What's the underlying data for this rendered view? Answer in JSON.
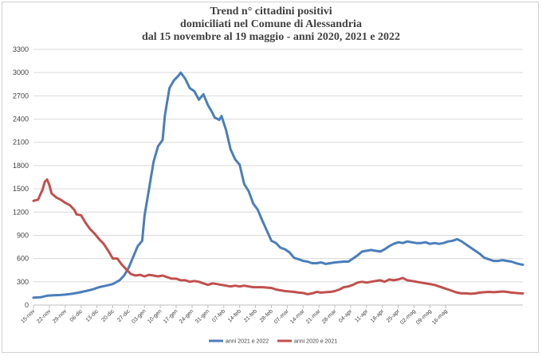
{
  "chart_data": {
    "type": "line",
    "title_lines": [
      "Trend n° cittadini positivi",
      "domiciliati nel Comune di Alessandria",
      "dal 15 novembre al 19 maggio - anni 2020, 2021 e 2022"
    ],
    "ylim": [
      0,
      3300
    ],
    "yticks": [
      0,
      300,
      600,
      900,
      1200,
      1500,
      1800,
      2100,
      2400,
      2700,
      3000,
      3300
    ],
    "grid": "horizontal",
    "legend_position": "bottom",
    "categories": [
      "15-nov",
      "22-nov",
      "29-nov",
      "06-dic",
      "13-dic",
      "20-dic",
      "27-dic",
      "03-gen",
      "10-gen",
      "17-gen",
      "24-gen",
      "31-gen",
      "07-feb",
      "14-feb",
      "21-feb",
      "28-feb",
      "07-mar",
      "14-mar",
      "21-mar",
      "28-mar",
      "04-apr",
      "11-apr",
      "18-apr",
      "25-apr",
      "02-mag",
      "09-mag",
      "16-mag"
    ],
    "series": [
      {
        "name": "anni 2021 e 2022",
        "color": "#4a7ebb",
        "points": [
          [
            0,
            95
          ],
          [
            3,
            100
          ],
          [
            6,
            120
          ],
          [
            9,
            125
          ],
          [
            12,
            130
          ],
          [
            14,
            135
          ],
          [
            17,
            145
          ],
          [
            20,
            160
          ],
          [
            23,
            180
          ],
          [
            26,
            200
          ],
          [
            29,
            230
          ],
          [
            32,
            250
          ],
          [
            35,
            270
          ],
          [
            38,
            320
          ],
          [
            40,
            380
          ],
          [
            42,
            480
          ],
          [
            44,
            620
          ],
          [
            46,
            760
          ],
          [
            48,
            830
          ],
          [
            49,
            1150
          ],
          [
            51,
            1500
          ],
          [
            53,
            1850
          ],
          [
            55,
            2050
          ],
          [
            57,
            2130
          ],
          [
            58,
            2450
          ],
          [
            60,
            2800
          ],
          [
            62,
            2900
          ],
          [
            64,
            2960
          ],
          [
            65,
            3000
          ],
          [
            67,
            2920
          ],
          [
            69,
            2800
          ],
          [
            71,
            2760
          ],
          [
            73,
            2650
          ],
          [
            75,
            2720
          ],
          [
            77,
            2580
          ],
          [
            79,
            2480
          ],
          [
            80,
            2420
          ],
          [
            82,
            2390
          ],
          [
            83,
            2440
          ],
          [
            85,
            2260
          ],
          [
            87,
            2010
          ],
          [
            89,
            1880
          ],
          [
            91,
            1810
          ],
          [
            93,
            1560
          ],
          [
            95,
            1470
          ],
          [
            97,
            1310
          ],
          [
            99,
            1230
          ],
          [
            101,
            1090
          ],
          [
            103,
            960
          ],
          [
            105,
            830
          ],
          [
            107,
            800
          ],
          [
            109,
            740
          ],
          [
            111,
            720
          ],
          [
            113,
            680
          ],
          [
            115,
            610
          ],
          [
            117,
            590
          ],
          [
            119,
            570
          ],
          [
            121,
            560
          ],
          [
            123,
            540
          ],
          [
            125,
            540
          ],
          [
            127,
            550
          ],
          [
            129,
            530
          ],
          [
            131,
            540
          ],
          [
            133,
            550
          ],
          [
            135,
            555
          ],
          [
            137,
            560
          ],
          [
            139,
            560
          ],
          [
            141,
            600
          ],
          [
            143,
            640
          ],
          [
            145,
            690
          ],
          [
            147,
            700
          ],
          [
            149,
            710
          ],
          [
            151,
            700
          ],
          [
            153,
            690
          ],
          [
            155,
            720
          ],
          [
            157,
            760
          ],
          [
            159,
            790
          ],
          [
            161,
            810
          ],
          [
            163,
            800
          ],
          [
            165,
            820
          ],
          [
            167,
            810
          ],
          [
            169,
            800
          ],
          [
            171,
            800
          ],
          [
            173,
            810
          ],
          [
            175,
            790
          ],
          [
            177,
            800
          ],
          [
            179,
            790
          ],
          [
            181,
            800
          ],
          [
            183,
            820
          ],
          [
            185,
            830
          ],
          [
            187,
            850
          ],
          [
            189,
            820
          ],
          [
            191,
            780
          ],
          [
            193,
            740
          ],
          [
            195,
            700
          ],
          [
            197,
            660
          ],
          [
            199,
            610
          ],
          [
            201,
            590
          ],
          [
            203,
            570
          ],
          [
            205,
            570
          ],
          [
            207,
            580
          ],
          [
            209,
            570
          ],
          [
            211,
            560
          ],
          [
            213,
            540
          ],
          [
            215,
            525
          ],
          [
            216,
            520
          ]
        ]
      },
      {
        "name": "anni 2020 e 2021",
        "color": "#c0504d",
        "points": [
          [
            0,
            1345
          ],
          [
            2,
            1360
          ],
          [
            4,
            1490
          ],
          [
            5,
            1590
          ],
          [
            6,
            1620
          ],
          [
            7,
            1550
          ],
          [
            8,
            1440
          ],
          [
            10,
            1390
          ],
          [
            12,
            1360
          ],
          [
            14,
            1320
          ],
          [
            16,
            1290
          ],
          [
            18,
            1230
          ],
          [
            19,
            1170
          ],
          [
            21,
            1160
          ],
          [
            23,
            1060
          ],
          [
            25,
            980
          ],
          [
            27,
            920
          ],
          [
            29,
            850
          ],
          [
            31,
            790
          ],
          [
            33,
            700
          ],
          [
            35,
            600
          ],
          [
            37,
            600
          ],
          [
            39,
            520
          ],
          [
            41,
            460
          ],
          [
            43,
            400
          ],
          [
            45,
            380
          ],
          [
            47,
            390
          ],
          [
            49,
            370
          ],
          [
            51,
            390
          ],
          [
            53,
            380
          ],
          [
            55,
            370
          ],
          [
            57,
            380
          ],
          [
            59,
            360
          ],
          [
            61,
            340
          ],
          [
            63,
            340
          ],
          [
            65,
            320
          ],
          [
            67,
            320
          ],
          [
            69,
            300
          ],
          [
            71,
            310
          ],
          [
            73,
            300
          ],
          [
            75,
            280
          ],
          [
            77,
            260
          ],
          [
            79,
            280
          ],
          [
            81,
            270
          ],
          [
            83,
            260
          ],
          [
            85,
            250
          ],
          [
            87,
            240
          ],
          [
            89,
            250
          ],
          [
            91,
            240
          ],
          [
            93,
            250
          ],
          [
            95,
            240
          ],
          [
            97,
            230
          ],
          [
            99,
            230
          ],
          [
            101,
            230
          ],
          [
            103,
            225
          ],
          [
            105,
            220
          ],
          [
            107,
            200
          ],
          [
            109,
            190
          ],
          [
            111,
            180
          ],
          [
            113,
            175
          ],
          [
            115,
            170
          ],
          [
            117,
            160
          ],
          [
            119,
            155
          ],
          [
            121,
            140
          ],
          [
            123,
            150
          ],
          [
            125,
            170
          ],
          [
            127,
            160
          ],
          [
            129,
            165
          ],
          [
            131,
            170
          ],
          [
            133,
            180
          ],
          [
            135,
            200
          ],
          [
            137,
            230
          ],
          [
            139,
            240
          ],
          [
            141,
            260
          ],
          [
            143,
            290
          ],
          [
            145,
            300
          ],
          [
            147,
            290
          ],
          [
            149,
            300
          ],
          [
            151,
            310
          ],
          [
            153,
            320
          ],
          [
            155,
            300
          ],
          [
            157,
            330
          ],
          [
            159,
            320
          ],
          [
            161,
            330
          ],
          [
            163,
            350
          ],
          [
            165,
            320
          ],
          [
            167,
            310
          ],
          [
            169,
            300
          ],
          [
            171,
            290
          ],
          [
            173,
            280
          ],
          [
            175,
            270
          ],
          [
            177,
            260
          ],
          [
            179,
            240
          ],
          [
            181,
            220
          ],
          [
            183,
            200
          ],
          [
            185,
            180
          ],
          [
            187,
            160
          ],
          [
            189,
            150
          ],
          [
            191,
            150
          ],
          [
            193,
            145
          ],
          [
            195,
            150
          ],
          [
            197,
            160
          ],
          [
            199,
            165
          ],
          [
            201,
            170
          ],
          [
            203,
            165
          ],
          [
            205,
            170
          ],
          [
            207,
            175
          ],
          [
            209,
            170
          ],
          [
            211,
            160
          ],
          [
            213,
            155
          ],
          [
            215,
            150
          ],
          [
            216,
            150
          ]
        ]
      }
    ]
  }
}
